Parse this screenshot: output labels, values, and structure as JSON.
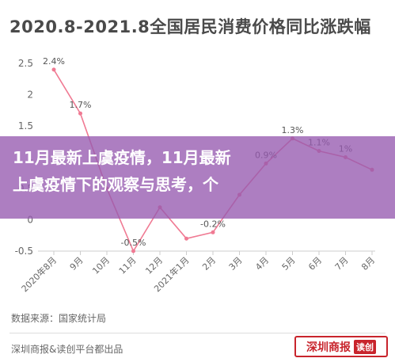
{
  "title": "2020.8-2021.8全国居民消费价格同比涨跌幅",
  "overlay": {
    "line1": "11月最新上虞疫情，11月最新",
    "line2": "上虞疫情下的观察与思考，个"
  },
  "source": "数据来源：国家统计局",
  "footer": "深圳商报&读创平台都出品",
  "brand": {
    "main": "深圳商报",
    "tag": "读创"
  },
  "colors": {
    "line": "#f07a93",
    "axis_text": "#666666",
    "grid": "#dddddd"
  },
  "chart_data": {
    "type": "line",
    "title": "2020.8-2021.8全国居民消费价格同比涨跌幅",
    "xlabel": "",
    "ylabel": "",
    "categories": [
      "2020年8月",
      "9月",
      "10月",
      "11月",
      "12月",
      "2021年1月",
      "2月",
      "3月",
      "4月",
      "5月",
      "6月",
      "7月",
      "8月"
    ],
    "values": [
      2.4,
      1.7,
      0.5,
      -0.5,
      0.2,
      -0.3,
      -0.2,
      0.4,
      0.9,
      1.3,
      1.1,
      1.0,
      0.8
    ],
    "data_labels": [
      "2.4%",
      "1.7%",
      "",
      "-0.5%",
      "",
      "",
      "-0.2%",
      "",
      "0.9%",
      "1.3%",
      "1.1%",
      "1%",
      ""
    ],
    "yticks": [
      "-0.5",
      "0",
      "0.5",
      "1",
      "1.5",
      "2",
      "2.5"
    ],
    "ylim": [
      -0.5,
      2.5
    ],
    "grid": false
  }
}
